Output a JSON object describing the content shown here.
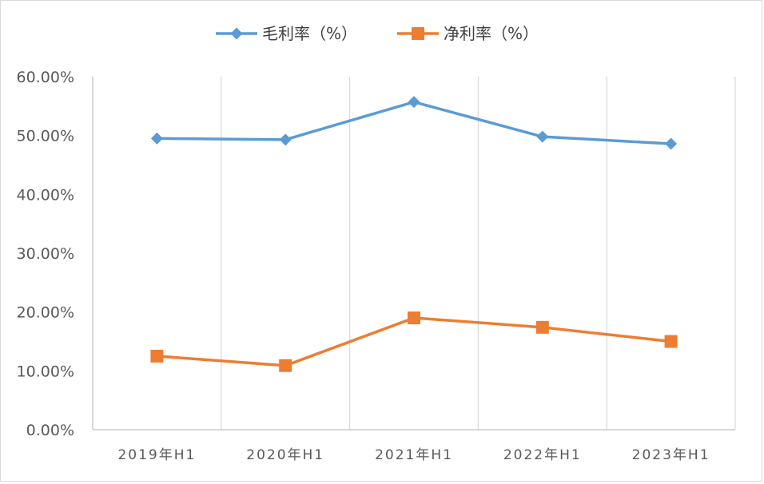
{
  "chart_data": {
    "type": "line",
    "categories": [
      "2019年H1",
      "2020年H1",
      "2021年H1",
      "2022年H1",
      "2023年H1"
    ],
    "series": [
      {
        "name": "毛利率（%）",
        "color": "#5b9bd5",
        "marker": "diamond",
        "values": [
          49.5,
          49.3,
          55.7,
          49.8,
          48.6
        ]
      },
      {
        "name": "净利率（%）",
        "color": "#ed7d31",
        "marker": "square",
        "values": [
          12.5,
          10.9,
          19.0,
          17.4,
          15.0
        ]
      }
    ],
    "yticks": [
      "0.00%",
      "10.00%",
      "20.00%",
      "30.00%",
      "40.00%",
      "50.00%",
      "60.00%"
    ],
    "ylim": [
      0,
      60
    ],
    "grid": "vertical",
    "legend_position": "top"
  }
}
